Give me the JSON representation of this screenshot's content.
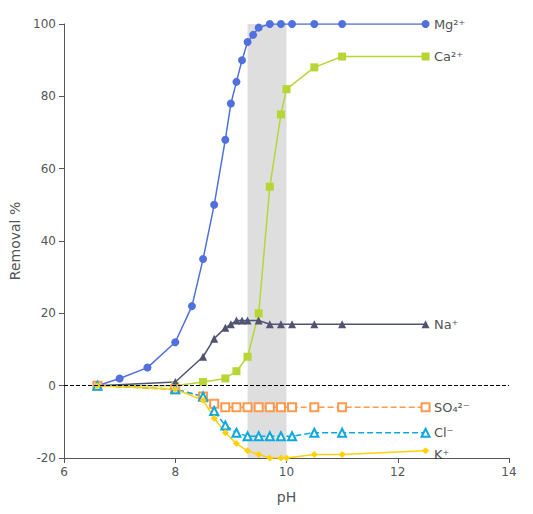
{
  "chart_data": {
    "type": "line",
    "xlabel": "pH",
    "ylabel": "Removal %",
    "xlim": [
      6,
      14
    ],
    "ylim": [
      -20,
      100
    ],
    "xticks": [
      6,
      8,
      10,
      12,
      14
    ],
    "yticks": [
      -20,
      0,
      20,
      40,
      60,
      80,
      100
    ],
    "grid": false,
    "shaded_region": [
      9.3,
      10.0
    ],
    "hline": 0,
    "annotations": [
      {
        "text": "Mg²⁺",
        "x": 12.65,
        "y": 100
      },
      {
        "text": "Ca²⁺",
        "x": 12.65,
        "y": 91
      },
      {
        "text": "Na⁺",
        "x": 12.65,
        "y": 17
      },
      {
        "text": "SO₄²⁻",
        "x": 12.65,
        "y": -6
      },
      {
        "text": "Cl⁻",
        "x": 12.65,
        "y": -13
      },
      {
        "text": "K⁺",
        "x": 12.65,
        "y": -19
      }
    ],
    "series": [
      {
        "marker": "circle",
        "line_style": "solid",
        "x": [
          6.6,
          7.0,
          7.5,
          8.0,
          8.3,
          8.5,
          8.7,
          8.9,
          9.0,
          9.1,
          9.2,
          9.3,
          9.4,
          9.5,
          9.7,
          9.9,
          10.1,
          10.5,
          11.0,
          12.5
        ],
        "values": [
          0,
          2,
          5,
          12,
          22,
          35,
          50,
          68,
          78,
          84,
          90,
          95,
          97,
          99,
          100,
          100,
          100,
          100,
          100,
          100
        ]
      },
      {
        "marker": "square",
        "line_style": "solid",
        "x": [
          6.6,
          8.0,
          8.5,
          8.9,
          9.1,
          9.3,
          9.5,
          9.7,
          9.9,
          10.0,
          10.5,
          11.0,
          12.5
        ],
        "values": [
          0,
          0,
          1,
          2,
          4,
          8,
          20,
          55,
          75,
          82,
          88,
          91,
          91
        ]
      },
      {
        "marker": "triangle",
        "line_style": "solid",
        "x": [
          6.6,
          8.0,
          8.5,
          8.7,
          8.9,
          9.0,
          9.1,
          9.2,
          9.3,
          9.5,
          9.7,
          9.9,
          10.1,
          10.5,
          11.0,
          12.5
        ],
        "values": [
          0,
          1,
          8,
          13,
          16,
          17,
          18,
          18,
          18,
          18,
          17,
          17,
          17,
          17,
          17,
          17
        ]
      },
      {
        "marker": "open-square",
        "line_style": "dashed",
        "x": [
          6.6,
          8.0,
          8.5,
          8.7,
          8.9,
          9.1,
          9.3,
          9.5,
          9.7,
          9.9,
          10.1,
          10.5,
          11.0,
          12.5
        ],
        "values": [
          0,
          -1,
          -3,
          -5,
          -6,
          -6,
          -6,
          -6,
          -6,
          -6,
          -6,
          -6,
          -6,
          -6
        ]
      },
      {
        "marker": "open-triangle",
        "line_style": "dashed",
        "x": [
          6.6,
          8.0,
          8.5,
          8.7,
          8.9,
          9.1,
          9.3,
          9.5,
          9.7,
          9.9,
          10.1,
          10.5,
          11.0,
          12.5
        ],
        "values": [
          0,
          -1,
          -3,
          -7,
          -11,
          -13,
          -14,
          -14,
          -14,
          -14,
          -14,
          -13,
          -13,
          -13
        ]
      },
      {
        "marker": "diamond",
        "line_style": "solid",
        "x": [
          6.6,
          8.0,
          8.5,
          8.7,
          8.9,
          9.1,
          9.3,
          9.5,
          9.7,
          9.9,
          10.0,
          10.5,
          11.0,
          12.5
        ],
        "values": [
          0,
          -1,
          -4,
          -9,
          -13,
          -16,
          -18,
          -19,
          -20,
          -20,
          -20,
          -19,
          -19,
          -18
        ]
      }
    ]
  }
}
